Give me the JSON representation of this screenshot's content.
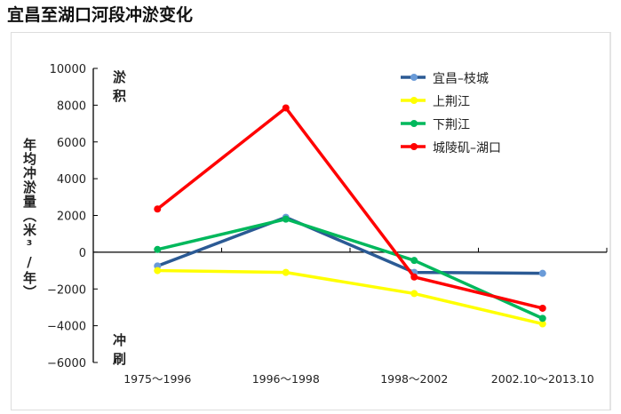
{
  "title": "宜昌至湖口河段冲淤变化",
  "chart_data": {
    "type": "line",
    "title": "宜昌至湖口河段冲淤变化",
    "ylabel": "年均冲淤量（米³/年）",
    "ylim": [
      -6000,
      10000
    ],
    "yticks": [
      10000,
      8000,
      6000,
      4000,
      2000,
      0,
      -2000,
      -4000,
      -6000
    ],
    "ytick_labels": [
      "10000",
      "8000",
      "6000",
      "4000",
      "2000",
      "0",
      "−2000",
      "−4000",
      "−6000"
    ],
    "categories": [
      "1975～1996",
      "1996～1998",
      "1998～2002",
      "2002.10～2013.10"
    ],
    "annotations": {
      "top": "淤积",
      "bottom": "冲刷"
    },
    "legend_position": "top-right",
    "grid": false,
    "series": [
      {
        "name": "宜昌–枝城",
        "color": "#2b5a94",
        "marker_color": "#6a9bd8",
        "values": [
          -750,
          1900,
          -1100,
          -1150
        ]
      },
      {
        "name": "上荆江",
        "color": "#ffff00",
        "marker_color": "#ffff00",
        "values": [
          -1000,
          -1100,
          -2250,
          -3900
        ]
      },
      {
        "name": "下荆江",
        "color": "#00b85c",
        "marker_color": "#00b85c",
        "values": [
          150,
          1800,
          -450,
          -3600
        ]
      },
      {
        "name": "城陵矶–湖口",
        "color": "#ff0000",
        "marker_color": "#ff0000",
        "values": [
          2350,
          7850,
          -1350,
          -3050
        ]
      }
    ]
  }
}
